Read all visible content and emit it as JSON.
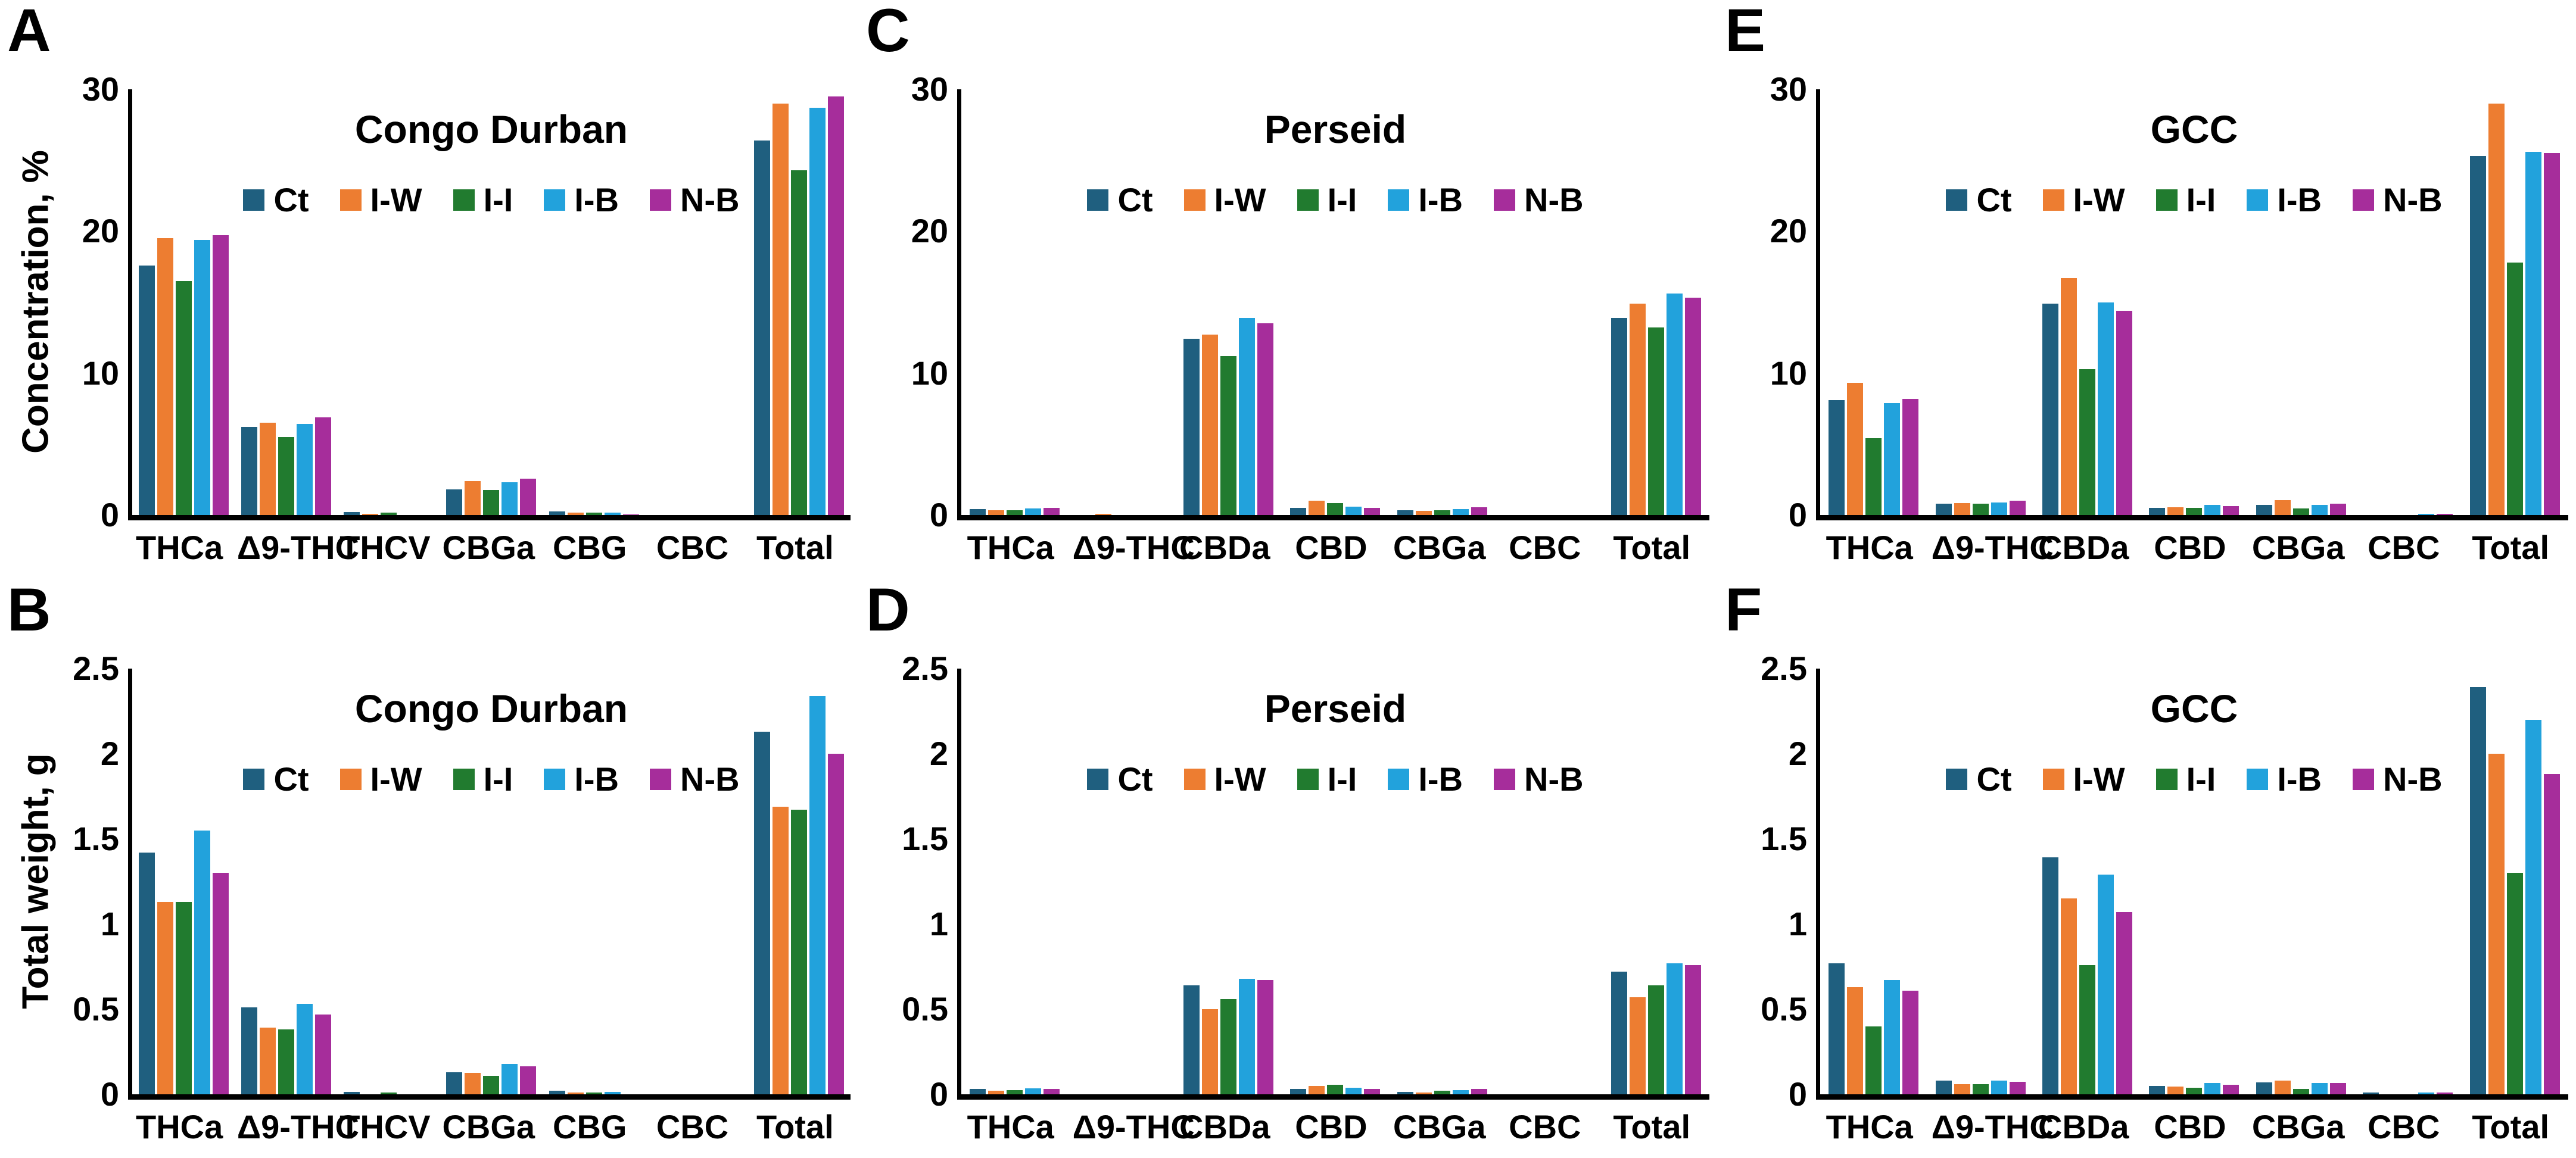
{
  "figure": {
    "series_labels": [
      "Ct",
      "I-W",
      "I-I",
      "I-B",
      "N-B"
    ],
    "series_colors": [
      "#1F5F7F",
      "#ED7D31",
      "#217B2F",
      "#22A2DC",
      "#A62D9B"
    ],
    "axis_color": "#000000",
    "background": "#FFFFFF",
    "legend_position": "top-center-inside",
    "grid": "off"
  },
  "chart_data": [
    {
      "type": "bar",
      "letter": "A",
      "title": "Congo Durban",
      "ylabel": "Concentration, %",
      "ylim": [
        0,
        30
      ],
      "ytick_values": [
        0,
        10,
        20,
        30
      ],
      "ytick_labels": [
        "0",
        "10",
        "20",
        "30"
      ],
      "categories": [
        "THCa",
        "Δ9-THC",
        "THCV",
        "CBGa",
        "CBG",
        "CBC",
        "Total"
      ],
      "series": [
        {
          "name": "Ct",
          "values": [
            17.6,
            6.2,
            0.2,
            1.8,
            0.25,
            0,
            26.4
          ]
        },
        {
          "name": "I-W",
          "values": [
            19.5,
            6.5,
            0.1,
            2.4,
            0.15,
            0,
            29.0
          ]
        },
        {
          "name": "I-I",
          "values": [
            16.5,
            5.5,
            0.15,
            1.75,
            0.15,
            0,
            24.3
          ]
        },
        {
          "name": "I-B",
          "values": [
            19.4,
            6.4,
            0,
            2.3,
            0.15,
            0,
            28.7
          ]
        },
        {
          "name": "N-B",
          "values": [
            19.7,
            6.9,
            0,
            2.55,
            0.05,
            0,
            29.5
          ]
        }
      ]
    },
    {
      "type": "bar",
      "letter": "C",
      "title": "Perseid",
      "ylabel": "",
      "ylim": [
        0,
        30
      ],
      "ytick_values": [
        0,
        10,
        20,
        30
      ],
      "ytick_labels": [
        "0",
        "10",
        "20",
        "30"
      ],
      "categories": [
        "THCa",
        "Δ9-THC",
        "CBDa",
        "CBD",
        "CBGa",
        "CBC",
        "Total"
      ],
      "series": [
        {
          "name": "Ct",
          "values": [
            0.4,
            0,
            12.4,
            0.5,
            0.35,
            0,
            13.9
          ]
        },
        {
          "name": "I-W",
          "values": [
            0.35,
            0.08,
            12.7,
            1.0,
            0.3,
            0,
            14.9
          ]
        },
        {
          "name": "I-I",
          "values": [
            0.35,
            0,
            11.2,
            0.85,
            0.35,
            0,
            13.2
          ]
        },
        {
          "name": "I-B",
          "values": [
            0.45,
            0,
            13.9,
            0.6,
            0.4,
            0,
            15.6
          ]
        },
        {
          "name": "N-B",
          "values": [
            0.5,
            0,
            13.5,
            0.5,
            0.55,
            0,
            15.3
          ]
        }
      ]
    },
    {
      "type": "bar",
      "letter": "E",
      "title": "GCC",
      "ylabel": "",
      "ylim": [
        0,
        30
      ],
      "ytick_values": [
        0,
        10,
        20,
        30
      ],
      "ytick_labels": [
        "0",
        "10",
        "20",
        "30"
      ],
      "categories": [
        "THCa",
        "Δ9-THC",
        "CBDa",
        "CBD",
        "CBGa",
        "CBC",
        "Total"
      ],
      "series": [
        {
          "name": "Ct",
          "values": [
            8.1,
            0.8,
            14.9,
            0.5,
            0.7,
            0,
            25.3
          ]
        },
        {
          "name": "I-W",
          "values": [
            9.3,
            0.85,
            16.7,
            0.55,
            1.05,
            0,
            29.0
          ]
        },
        {
          "name": "I-I",
          "values": [
            5.4,
            0.8,
            10.3,
            0.5,
            0.45,
            0,
            17.8
          ]
        },
        {
          "name": "I-B",
          "values": [
            7.9,
            0.9,
            15.0,
            0.7,
            0.7,
            0.07,
            25.6
          ]
        },
        {
          "name": "N-B",
          "values": [
            8.2,
            1.0,
            14.4,
            0.65,
            0.8,
            0.07,
            25.5
          ]
        }
      ]
    },
    {
      "type": "bar",
      "letter": "B",
      "title": "Congo Durban",
      "ylabel": "Total weight, g",
      "ylim": [
        0,
        2.5
      ],
      "ytick_values": [
        0,
        0.5,
        1,
        1.5,
        2,
        2.5
      ],
      "ytick_labels": [
        "0",
        "0.5",
        "1",
        "1.5",
        "2",
        "2.5"
      ],
      "categories": [
        "THCa",
        "Δ9-THC",
        "THCV",
        "CBGa",
        "CBG",
        "CBC",
        "Total"
      ],
      "series": [
        {
          "name": "Ct",
          "values": [
            1.42,
            0.51,
            0.015,
            0.13,
            0.02,
            0,
            2.13
          ]
        },
        {
          "name": "I-W",
          "values": [
            1.13,
            0.39,
            0,
            0.125,
            0.01,
            0,
            1.69
          ]
        },
        {
          "name": "I-I",
          "values": [
            1.13,
            0.38,
            0.012,
            0.11,
            0.01,
            0,
            1.67
          ]
        },
        {
          "name": "I-B",
          "values": [
            1.55,
            0.53,
            0,
            0.18,
            0.015,
            0,
            2.34
          ]
        },
        {
          "name": "N-B",
          "values": [
            1.3,
            0.47,
            0,
            0.165,
            0,
            0,
            2.0
          ]
        }
      ]
    },
    {
      "type": "bar",
      "letter": "D",
      "title": "Perseid",
      "ylabel": "",
      "ylim": [
        0,
        2.5
      ],
      "ytick_values": [
        0,
        0.5,
        1,
        1.5,
        2,
        2.5
      ],
      "ytick_labels": [
        "0",
        "0.5",
        "1",
        "1.5",
        "2",
        "2.5"
      ],
      "categories": [
        "THCa",
        "Δ9-THC",
        "CBDa",
        "CBD",
        "CBGa",
        "CBC",
        "Total"
      ],
      "series": [
        {
          "name": "Ct",
          "values": [
            0.03,
            0,
            0.64,
            0.03,
            0.015,
            0,
            0.72
          ]
        },
        {
          "name": "I-W",
          "values": [
            0.02,
            0,
            0.5,
            0.05,
            0.01,
            0,
            0.57
          ]
        },
        {
          "name": "I-I",
          "values": [
            0.025,
            0,
            0.56,
            0.055,
            0.02,
            0,
            0.64
          ]
        },
        {
          "name": "I-B",
          "values": [
            0.035,
            0,
            0.68,
            0.04,
            0.025,
            0,
            0.77
          ]
        },
        {
          "name": "N-B",
          "values": [
            0.03,
            0,
            0.67,
            0.03,
            0.03,
            0,
            0.76
          ]
        }
      ]
    },
    {
      "type": "bar",
      "letter": "F",
      "title": "GCC",
      "ylabel": "",
      "ylim": [
        0,
        2.5
      ],
      "ytick_values": [
        0,
        0.5,
        1,
        1.5,
        2,
        2.5
      ],
      "ytick_labels": [
        "0",
        "0.5",
        "1",
        "1.5",
        "2",
        "2.5"
      ],
      "categories": [
        "THCa",
        "Δ9-THC",
        "CBDa",
        "CBD",
        "CBGa",
        "CBC",
        "Total"
      ],
      "series": [
        {
          "name": "Ct",
          "values": [
            0.77,
            0.08,
            1.39,
            0.05,
            0.07,
            0.01,
            2.39
          ]
        },
        {
          "name": "I-W",
          "values": [
            0.63,
            0.06,
            1.15,
            0.045,
            0.08,
            0,
            2.0
          ]
        },
        {
          "name": "I-I",
          "values": [
            0.4,
            0.06,
            0.76,
            0.04,
            0.03,
            0,
            1.3
          ]
        },
        {
          "name": "I-B",
          "values": [
            0.67,
            0.08,
            1.29,
            0.065,
            0.065,
            0.01,
            2.2
          ]
        },
        {
          "name": "N-B",
          "values": [
            0.61,
            0.075,
            1.07,
            0.055,
            0.065,
            0.01,
            1.88
          ]
        }
      ]
    }
  ]
}
